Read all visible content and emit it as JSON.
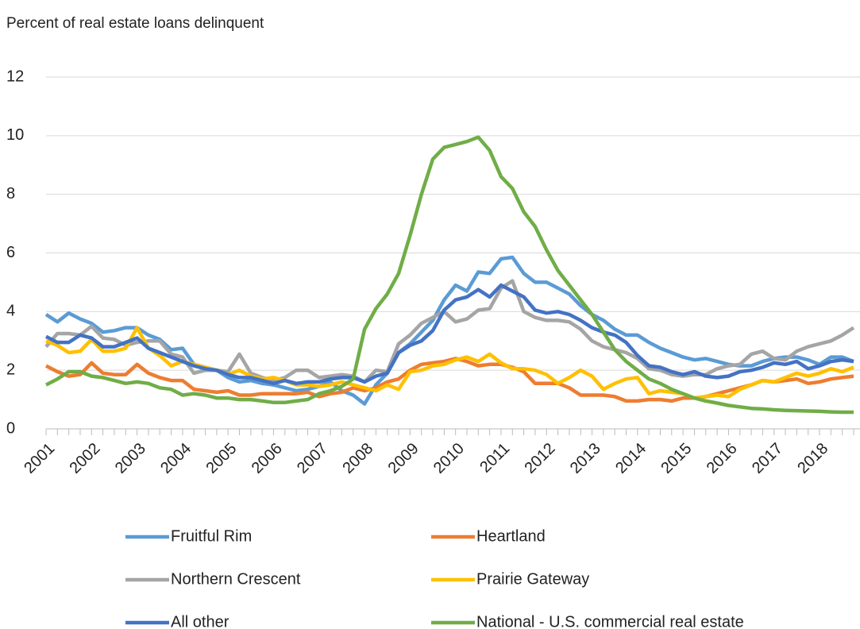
{
  "chart_data": {
    "type": "line",
    "y_label": "Percent of real estate loans delinquent",
    "categories": [
      "2001",
      null,
      null,
      null,
      "2002",
      null,
      null,
      null,
      "2003",
      null,
      null,
      null,
      "2004",
      null,
      null,
      null,
      "2005",
      null,
      null,
      null,
      "2006",
      null,
      null,
      null,
      "2007",
      null,
      null,
      null,
      "2008",
      null,
      null,
      null,
      "2009",
      null,
      null,
      null,
      "2010",
      null,
      null,
      null,
      "2011",
      null,
      null,
      null,
      "2012",
      null,
      null,
      null,
      "2013",
      null,
      null,
      null,
      "2014",
      null,
      null,
      null,
      "2015",
      null,
      null,
      null,
      "2016",
      null,
      null,
      null,
      "2017",
      null,
      null,
      null,
      "2018",
      null,
      null,
      null
    ],
    "ylim": [
      0,
      12
    ],
    "yticks": [
      0,
      2,
      4,
      6,
      8,
      10,
      12
    ],
    "grid": true,
    "legend": "bottom",
    "series": [
      {
        "name": "Fruitful Rim",
        "color": "#5b9bd5",
        "values": [
          3.9,
          3.65,
          3.95,
          3.75,
          3.6,
          3.3,
          3.35,
          3.45,
          3.45,
          3.2,
          3.05,
          2.7,
          2.75,
          2.2,
          2.1,
          2.0,
          1.75,
          1.6,
          1.65,
          1.55,
          1.5,
          1.4,
          1.3,
          1.35,
          1.45,
          1.6,
          1.3,
          1.15,
          0.85,
          1.5,
          1.9,
          2.6,
          2.9,
          3.3,
          3.7,
          4.4,
          4.9,
          4.7,
          5.35,
          5.3,
          5.8,
          5.85,
          5.3,
          5.0,
          5.0,
          4.8,
          4.6,
          4.2,
          3.9,
          3.7,
          3.4,
          3.2,
          3.2,
          2.95,
          2.75,
          2.6,
          2.45,
          2.35,
          2.4,
          2.3,
          2.2,
          2.15,
          2.15,
          2.3,
          2.4,
          2.45,
          2.45,
          2.35,
          2.2,
          2.45,
          2.45,
          2.3
        ]
      },
      {
        "name": "Heartland",
        "color": "#ed7d31",
        "values": [
          2.15,
          1.95,
          1.8,
          1.85,
          2.25,
          1.9,
          1.85,
          1.85,
          2.2,
          1.9,
          1.75,
          1.65,
          1.65,
          1.35,
          1.3,
          1.25,
          1.3,
          1.15,
          1.15,
          1.2,
          1.2,
          1.2,
          1.2,
          1.25,
          1.1,
          1.2,
          1.25,
          1.4,
          1.3,
          1.4,
          1.6,
          1.7,
          2.0,
          2.2,
          2.25,
          2.3,
          2.4,
          2.3,
          2.15,
          2.2,
          2.2,
          2.1,
          1.95,
          1.55,
          1.55,
          1.55,
          1.4,
          1.15,
          1.15,
          1.15,
          1.1,
          0.95,
          0.95,
          1.0,
          1.0,
          0.95,
          1.05,
          1.05,
          1.1,
          1.2,
          1.3,
          1.4,
          1.5,
          1.65,
          1.6,
          1.65,
          1.7,
          1.55,
          1.6,
          1.7,
          1.75,
          1.8
        ]
      },
      {
        "name": "Northern Crescent",
        "color": "#a5a5a5",
        "values": [
          2.8,
          3.25,
          3.25,
          3.2,
          3.5,
          3.1,
          3.05,
          2.85,
          2.95,
          3.0,
          3.0,
          2.55,
          2.45,
          1.9,
          2.0,
          2.0,
          1.95,
          2.55,
          1.9,
          1.75,
          1.65,
          1.75,
          2.0,
          2.0,
          1.75,
          1.8,
          1.85,
          1.8,
          1.6,
          2.0,
          1.95,
          2.9,
          3.2,
          3.6,
          3.8,
          4.0,
          3.65,
          3.75,
          4.05,
          4.1,
          4.8,
          5.05,
          4.0,
          3.8,
          3.7,
          3.7,
          3.65,
          3.4,
          3.0,
          2.8,
          2.7,
          2.6,
          2.4,
          2.05,
          2.0,
          1.85,
          1.8,
          1.85,
          1.85,
          2.05,
          2.15,
          2.2,
          2.55,
          2.65,
          2.4,
          2.35,
          2.65,
          2.8,
          2.9,
          3.0,
          3.2,
          3.45
        ]
      },
      {
        "name": "Prairie Gateway",
        "color": "#ffc000",
        "values": [
          3.0,
          2.85,
          2.6,
          2.65,
          3.05,
          2.65,
          2.65,
          2.75,
          3.45,
          2.75,
          2.5,
          2.15,
          2.3,
          2.2,
          2.1,
          2.0,
          1.85,
          2.0,
          1.8,
          1.7,
          1.75,
          1.65,
          1.5,
          1.5,
          1.45,
          1.5,
          1.6,
          1.5,
          1.4,
          1.3,
          1.5,
          1.35,
          1.95,
          2.0,
          2.15,
          2.2,
          2.35,
          2.45,
          2.3,
          2.55,
          2.25,
          2.05,
          2.05,
          2.0,
          1.85,
          1.55,
          1.75,
          2.0,
          1.8,
          1.35,
          1.55,
          1.7,
          1.75,
          1.2,
          1.3,
          1.25,
          1.2,
          1.05,
          1.1,
          1.15,
          1.1,
          1.35,
          1.5,
          1.65,
          1.6,
          1.75,
          1.9,
          1.8,
          1.9,
          2.05,
          1.95,
          2.1
        ]
      },
      {
        "name": "All other",
        "color": "#4472c4",
        "values": [
          3.15,
          2.95,
          2.95,
          3.2,
          3.1,
          2.8,
          2.8,
          2.95,
          3.1,
          2.75,
          2.6,
          2.45,
          2.3,
          2.15,
          2.05,
          2.0,
          1.85,
          1.75,
          1.75,
          1.65,
          1.55,
          1.65,
          1.55,
          1.6,
          1.6,
          1.7,
          1.75,
          1.75,
          1.6,
          1.8,
          1.9,
          2.6,
          2.85,
          3.0,
          3.35,
          4.05,
          4.4,
          4.5,
          4.75,
          4.5,
          4.9,
          4.7,
          4.5,
          4.05,
          3.95,
          4.0,
          3.9,
          3.7,
          3.45,
          3.3,
          3.2,
          2.95,
          2.5,
          2.15,
          2.1,
          1.95,
          1.85,
          1.95,
          1.8,
          1.75,
          1.8,
          1.95,
          2.0,
          2.1,
          2.25,
          2.2,
          2.3,
          2.05,
          2.15,
          2.3,
          2.35,
          2.3
        ]
      },
      {
        "name": "National - U.S. commercial real estate",
        "color": "#70ad47",
        "values": [
          1.5,
          1.7,
          1.95,
          1.95,
          1.8,
          1.75,
          1.65,
          1.55,
          1.6,
          1.55,
          1.4,
          1.35,
          1.15,
          1.2,
          1.15,
          1.05,
          1.05,
          1.0,
          1.0,
          0.95,
          0.9,
          0.9,
          0.95,
          1.0,
          1.2,
          1.3,
          1.45,
          1.7,
          3.4,
          4.1,
          4.6,
          5.3,
          6.6,
          8.0,
          9.2,
          9.6,
          9.7,
          9.8,
          9.95,
          9.5,
          8.6,
          8.2,
          7.4,
          6.9,
          6.1,
          5.4,
          4.9,
          4.4,
          3.9,
          3.3,
          2.7,
          2.3,
          2.0,
          1.7,
          1.55,
          1.35,
          1.2,
          1.05,
          0.95,
          0.88,
          0.8,
          0.75,
          0.7,
          0.68,
          0.65,
          0.63,
          0.62,
          0.61,
          0.6,
          0.58,
          0.57,
          0.57
        ]
      }
    ]
  }
}
